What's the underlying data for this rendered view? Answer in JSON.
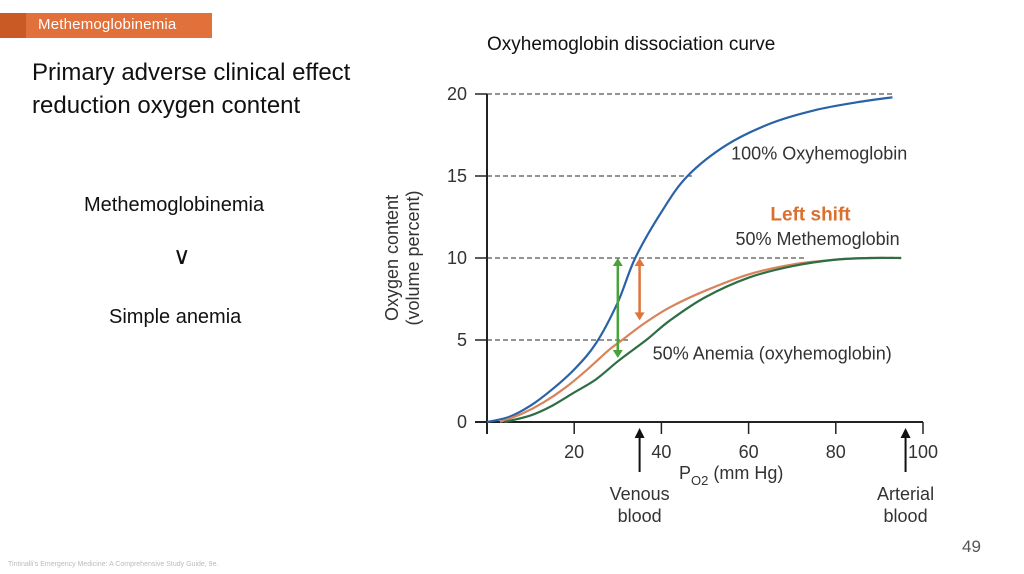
{
  "slide": {
    "section_tag": "Methemoglobinemia",
    "headline_line1": "Primary adverse clinical effect",
    "headline_line2": "reduction oxygen content",
    "comparison": {
      "top": "Methemoglobinemia",
      "symbol": "∨",
      "bottom": "Simple anemia"
    },
    "footer_citation": "Tintinalli's Emergency Medicine: A Comprehensive Study Guide, 9e.",
    "page_number": "49"
  },
  "chart_data": {
    "type": "line",
    "title": "Oxyhemoglobin dissociation curve",
    "xlabel": "PO2 (mm Hg)",
    "xlabel_main": "P",
    "xlabel_sub": "O2",
    "xlabel_rest": " (mm Hg)",
    "ylabel_line1": "Oxygen content",
    "ylabel_line2": "(volume percent)",
    "xlim": [
      0,
      100
    ],
    "ylim": [
      0,
      20
    ],
    "xticks": [
      20,
      40,
      60,
      80,
      100
    ],
    "yticks": [
      0,
      5,
      10,
      15,
      20
    ],
    "grid": "dashed horizontal reference lines at 5, 10, 15, 20",
    "series": [
      {
        "name": "100% Oxyhemoglobin",
        "color": "#2a62a8",
        "x": [
          0,
          5,
          10,
          15,
          20,
          25,
          30,
          34,
          40,
          46,
          55,
          65,
          75,
          85,
          93
        ],
        "y": [
          0,
          0.3,
          1.0,
          2.0,
          3.2,
          4.8,
          7.3,
          10.0,
          12.8,
          15.0,
          16.9,
          18.2,
          19.0,
          19.5,
          19.8
        ]
      },
      {
        "name": "50% Methemoglobin",
        "color": "#d9835a",
        "x": [
          3,
          8,
          13,
          18,
          23,
          28,
          31,
          36,
          42,
          50,
          60,
          70,
          80,
          88,
          95
        ],
        "y": [
          0,
          0.5,
          1.2,
          2.1,
          3.2,
          4.4,
          5.0,
          6.0,
          7.0,
          8.0,
          9.0,
          9.6,
          9.9,
          10.0,
          10.0
        ]
      },
      {
        "name": "50% Anemia (oxyhemoglobin)",
        "color": "#2e6e45",
        "x": [
          4,
          10,
          15,
          20,
          25,
          30,
          34,
          37,
          42,
          50,
          60,
          70,
          80,
          88,
          95
        ],
        "y": [
          0,
          0.4,
          1.0,
          1.8,
          2.6,
          3.7,
          4.5,
          5.1,
          6.2,
          7.6,
          8.8,
          9.5,
          9.9,
          10.0,
          10.0
        ]
      }
    ],
    "annotations": [
      {
        "text": "100% Oxyhemoglobin",
        "x": 56,
        "y": 16.0
      },
      {
        "text": "Left shift",
        "x": 65,
        "y": 12.3,
        "color": "#d9702f",
        "bold": true
      },
      {
        "text": "50% Methemoglobin",
        "x": 57,
        "y": 10.8
      },
      {
        "text": "50% Anemia (oxyhemoglobin)",
        "x": 38,
        "y": 3.8
      },
      {
        "text": "Venous blood",
        "x": 35,
        "arrow": true
      },
      {
        "text": "Arterial blood",
        "x": 96,
        "arrow": true
      }
    ],
    "double_arrows": [
      {
        "name": "green-arrow",
        "x": 30,
        "y_from": 3.9,
        "y_to": 10,
        "color": "#4aa33a"
      },
      {
        "name": "orange-arrow",
        "x": 35,
        "y_from": 6.2,
        "y_to": 10,
        "color": "#e0743a"
      }
    ],
    "dashed_lines": [
      {
        "y": 20,
        "x_to": 93
      },
      {
        "y": 15,
        "x_to": 47
      },
      {
        "y": 10,
        "x_to": 73
      },
      {
        "y": 5,
        "x_to": 33
      }
    ]
  }
}
